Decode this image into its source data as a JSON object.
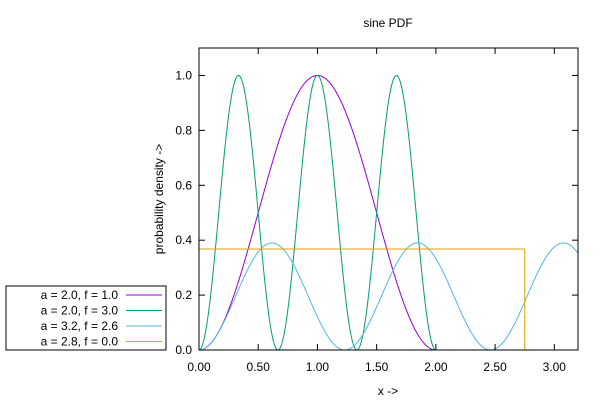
{
  "chart_data": {
    "type": "line",
    "title": "sine PDF",
    "xlabel": "x ->",
    "ylabel": "probability density ->",
    "xlim": [
      0,
      3.2
    ],
    "ylim": [
      0,
      1.1
    ],
    "xticks": [
      "0.00",
      "0.50",
      "1.00",
      "1.50",
      "2.00",
      "2.50",
      "3.00"
    ],
    "xtick_values": [
      0,
      0.5,
      1,
      1.5,
      2,
      2.5,
      3
    ],
    "yticks": [
      "0.0",
      "0.2",
      "0.4",
      "0.6",
      "0.8",
      "1.0"
    ],
    "ytick_values": [
      0,
      0.2,
      0.4,
      0.6,
      0.8,
      1.0
    ],
    "grid": false,
    "legend_position": "bottom-left, outside plot",
    "series": [
      {
        "name": "a = 2.0, f = 1.0",
        "color": "#9400d3",
        "formula": "sin^2(pi*f*x/a) for 0<=x<=a, else 0",
        "x": [
          0,
          0.25,
          0.5,
          0.75,
          1.0,
          1.25,
          1.5,
          1.75,
          2.0
        ],
        "y": [
          0,
          0.146,
          0.5,
          0.854,
          1.0,
          0.854,
          0.5,
          0.146,
          0
        ]
      },
      {
        "name": "a = 2.0, f = 3.0",
        "color": "#009e73",
        "formula": "sin^2(pi*f*x/a) for 0<=x<=a, else 0",
        "x": [
          0,
          0.333,
          0.667,
          1.0,
          1.333,
          1.667,
          2.0
        ],
        "y": [
          0,
          1.0,
          0,
          1.0,
          0,
          1.0,
          0
        ]
      },
      {
        "name": "a = 3.2, f = 2.6",
        "color": "#56b4e9",
        "formula": "0.39 * sin^2(pi*f*x/a) for 0<=x<=a, else 0",
        "x": [
          0,
          0.615,
          1.231,
          1.846,
          2.462,
          3.077
        ],
        "y": [
          0,
          0.39,
          0,
          0.39,
          0,
          0.39
        ]
      },
      {
        "name": "a = 2.8, f = 0.0",
        "color": "#e69f00",
        "formula": "1/e for 0<=x<=a, else 0",
        "x": [
          0,
          2.75,
          2.75
        ],
        "y": [
          0.368,
          0.368,
          0
        ]
      }
    ]
  }
}
